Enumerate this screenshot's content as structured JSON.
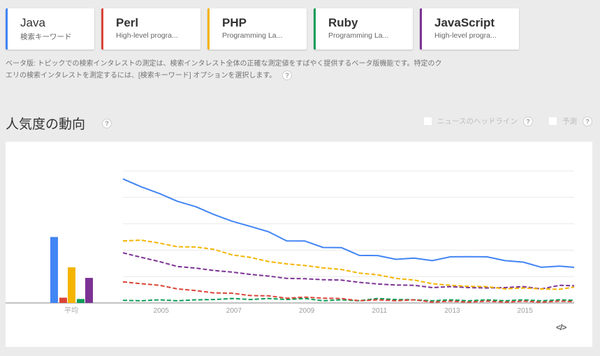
{
  "terms": [
    {
      "name": "Java",
      "subtitle": "検索キーワード",
      "color": "#4285f4",
      "bold": false
    },
    {
      "name": "Perl",
      "subtitle": "High-level progra...",
      "color": "#db4437",
      "bold": true
    },
    {
      "name": "PHP",
      "subtitle": "Programming La...",
      "color": "#f4b400",
      "bold": true
    },
    {
      "name": "Ruby",
      "subtitle": "Programming La...",
      "color": "#0f9d58",
      "bold": true
    },
    {
      "name": "JavaScript",
      "subtitle": "High-level progra...",
      "color": "#7b3294",
      "bold": true
    }
  ],
  "beta_notice": {
    "line1": "ベータ版: トピックでの検索インタレストの測定は、検索インタレスト全体の正確な測定値をすばやく提供するベータ版機能です。特定のク",
    "line2": "エリの検索インタレストを測定するには、[検索キーワード] オプションを選択します。",
    "help_icon": "?"
  },
  "section": {
    "title": "人気度の動向",
    "help_icon": "?",
    "options": [
      {
        "label": "ニュースのヘッドライン",
        "checked": false,
        "help_icon": "?"
      },
      {
        "label": "予測",
        "checked": false,
        "help_icon": "?"
      }
    ]
  },
  "embed_label": "</>",
  "chart_data": [
    {
      "type": "bar",
      "title": "平均",
      "categories": [
        "Java",
        "Perl",
        "PHP",
        "Ruby",
        "JavaScript"
      ],
      "values": [
        50,
        4,
        27,
        3,
        19
      ],
      "colors": [
        "#4285f4",
        "#db4437",
        "#f4b400",
        "#0f9d58",
        "#7b3294"
      ],
      "xlabel": "平均",
      "ylim": [
        0,
        100
      ]
    },
    {
      "type": "line",
      "title": "人気度の動向",
      "xlabel": "",
      "ylabel": "",
      "x_ticks": [
        "2005",
        "2007",
        "2009",
        "2011",
        "2013",
        "2015"
      ],
      "x_range": [
        "2004-01",
        "2016-06"
      ],
      "ylim": [
        0,
        100
      ],
      "grid": true,
      "x": [
        2004.0,
        2004.5,
        2005.0,
        2005.5,
        2006.0,
        2006.5,
        2007.0,
        2007.5,
        2008.0,
        2008.5,
        2009.0,
        2009.5,
        2010.0,
        2010.5,
        2011.0,
        2011.5,
        2012.0,
        2012.5,
        2013.0,
        2013.5,
        2014.0,
        2014.5,
        2015.0,
        2015.5,
        2016.0,
        2016.4
      ],
      "series": [
        {
          "name": "Java",
          "style": "solid",
          "color": "#4285f4",
          "values": [
            94,
            89,
            82,
            78,
            72,
            68,
            61,
            59,
            53,
            48,
            46,
            43,
            41,
            37,
            35,
            34,
            33,
            33,
            34,
            36,
            34,
            33,
            30,
            28,
            27,
            27
          ]
        },
        {
          "name": "PHP",
          "style": "dashed",
          "color": "#f4b400",
          "values": [
            47,
            48,
            45,
            43,
            42,
            41,
            36,
            35,
            31,
            30,
            28,
            27,
            25,
            23,
            21,
            19,
            17,
            15,
            13,
            13,
            12,
            11,
            11,
            11,
            10,
            12
          ]
        },
        {
          "name": "JavaScript",
          "style": "dashed",
          "color": "#7b3294",
          "values": [
            38,
            35,
            31,
            28,
            26,
            25,
            23,
            22,
            20,
            19,
            18,
            18,
            17,
            16,
            14,
            14,
            13,
            12,
            12,
            12,
            11,
            12,
            12,
            11,
            13,
            13
          ]
        },
        {
          "name": "Perl",
          "style": "dashed",
          "color": "#db4437",
          "values": [
            16,
            15,
            13,
            11,
            9,
            8,
            7,
            6,
            5,
            4,
            4,
            4,
            3,
            2,
            2,
            2,
            2,
            1,
            1,
            1,
            1,
            1,
            1,
            1,
            1,
            1
          ]
        },
        {
          "name": "Ruby",
          "style": "dashed",
          "color": "#0f9d58",
          "values": [
            2,
            2,
            2,
            2,
            2,
            3,
            3,
            3,
            3,
            3,
            3,
            2,
            2,
            2,
            3,
            3,
            2,
            2,
            2,
            2,
            2,
            2,
            2,
            2,
            2,
            2
          ]
        }
      ]
    }
  ]
}
